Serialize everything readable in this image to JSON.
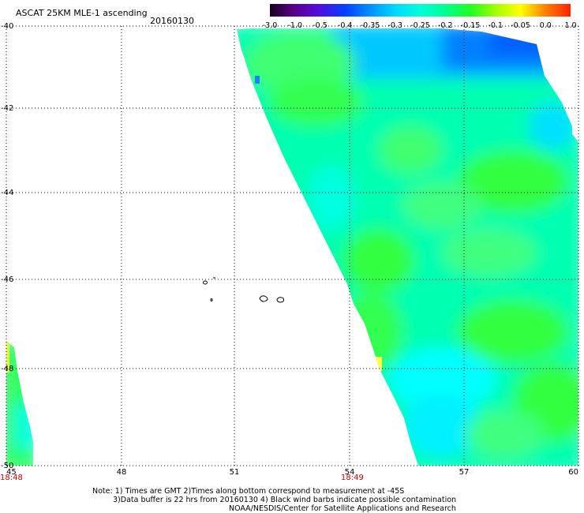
{
  "title": "ASCAT 25KM MLE-1 ascending",
  "date": "20160130",
  "colorbar": {
    "labels": [
      "-3.0",
      "-1.0",
      "-0.5",
      "-0.4",
      "-0.35",
      "-0.3",
      "-0.25",
      "-0.2",
      "-0.15",
      "-0.1",
      "-0.05",
      "0.0",
      "1.0"
    ],
    "colors": [
      "#1a001a",
      "#5a0090",
      "#5010e0",
      "#0040ff",
      "#0090ff",
      "#00d8ff",
      "#00ffd8",
      "#00ff90",
      "#20ff20",
      "#a0ff00",
      "#ffff00",
      "#ff8000",
      "#ff2000"
    ]
  },
  "x_ticks": [
    "45",
    "48",
    "51",
    "54",
    "57",
    "60"
  ],
  "y_ticks": [
    "-40",
    "-42",
    "-44",
    "-46",
    "-48",
    "-50"
  ],
  "times": {
    "left": "18:48",
    "center": "18:49"
  },
  "notes": [
    "Note: 1) Times are GMT 2)Times along bottom correspond to measurement at -45S",
    "3)Data buffer is 22 hrs from 20160130 4) Black wind barbs indicate possible contamination",
    "NOAA/NESDIS/Center for Satellite Applications and Research"
  ]
}
